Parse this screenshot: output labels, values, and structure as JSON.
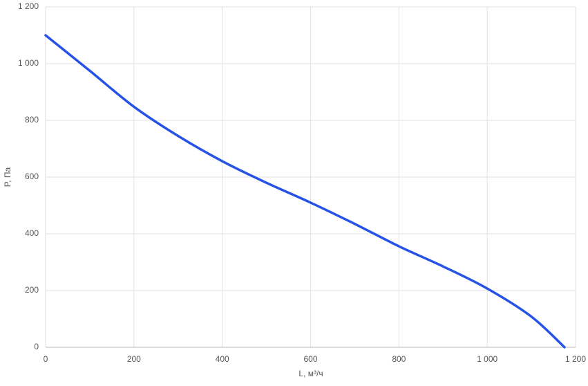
{
  "chart_data": {
    "type": "line",
    "x_label": "L, м³/ч",
    "y_label": "P, Па",
    "x": [
      0,
      100,
      200,
      300,
      400,
      500,
      600,
      700,
      800,
      900,
      1000,
      1100,
      1175
    ],
    "series": [
      {
        "color": "#2653e6",
        "values": [
          1100,
          975,
          848,
          745,
          656,
          580,
          510,
          435,
          356,
          285,
          207,
          108,
          0
        ]
      }
    ],
    "xlim": [
      0,
      1200
    ],
    "ylim": [
      0,
      1200
    ],
    "xticks": [
      0,
      200,
      400,
      600,
      800,
      {
        "value": 1000,
        "label": "1 000"
      },
      {
        "value": 1200,
        "label": "1 200"
      }
    ],
    "yticks": [
      0,
      200,
      400,
      600,
      800,
      {
        "value": 1000,
        "label": "1 000"
      },
      {
        "value": 1200,
        "label": "1 200"
      }
    ],
    "grid": true
  }
}
